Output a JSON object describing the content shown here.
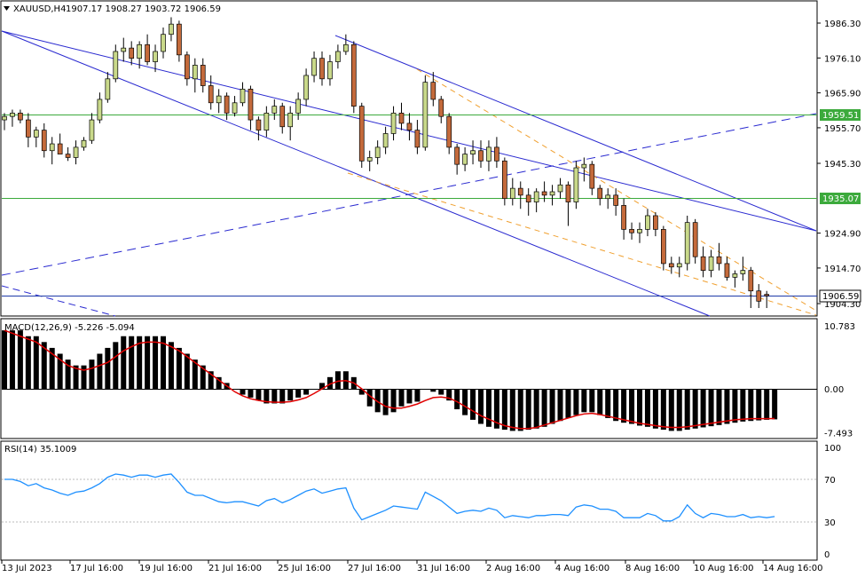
{
  "header": {
    "symbol_title": "XAUUSD,H4",
    "ohlc": "1907.17 1908.27 1903.72 1906.59"
  },
  "colors": {
    "bull": "#c9d98a",
    "bear": "#c46a3b",
    "channel": "#2a2ad0",
    "support": "#3caa3c",
    "fib": "#f0a030",
    "macd_signal": "#e00000",
    "rsi": "#1e90ff",
    "current_price": "#1e3aa8"
  },
  "price_axis": {
    "ticks": [
      "1986.30",
      "1976.10",
      "1965.90",
      "1955.70",
      "1945.30",
      "1924.90",
      "1914.70",
      "1904.30"
    ],
    "levels": [
      {
        "label": "1959.51",
        "kind": "support"
      },
      {
        "label": "1935.07",
        "kind": "support"
      },
      {
        "label": "1906.59",
        "kind": "current"
      }
    ]
  },
  "macd": {
    "title": "MACD(12,26,9) -5.226 -5.094",
    "ticks": [
      "10.783",
      "0.00",
      "-7.493"
    ]
  },
  "rsi": {
    "title": "RSI(14) 35.1009",
    "ticks": [
      "100",
      "70",
      "30",
      "0"
    ]
  },
  "time_axis": {
    "labels": [
      "13 Jul 2023",
      "17 Jul 16:00",
      "19 Jul 16:00",
      "21 Jul 16:00",
      "25 Jul 16:00",
      "27 Jul 16:00",
      "31 Jul 16:00",
      "2 Aug 16:00",
      "4 Aug 16:00",
      "8 Aug 16:00",
      "10 Aug 16:00",
      "14 Aug 16:00"
    ]
  },
  "chart_data": {
    "type": "candlestick",
    "ylim": [
      1900,
      1992
    ],
    "candles": [
      [
        1958,
        1960,
        1955,
        1959
      ],
      [
        1959,
        1961,
        1956,
        1960
      ],
      [
        1960,
        1961,
        1957,
        1958
      ],
      [
        1958,
        1960,
        1950,
        1953
      ],
      [
        1953,
        1956,
        1950,
        1955
      ],
      [
        1955,
        1957,
        1947,
        1949
      ],
      [
        1949,
        1953,
        1945,
        1951
      ],
      [
        1951,
        1954,
        1948,
        1948
      ],
      [
        1948,
        1950,
        1946,
        1947
      ],
      [
        1947,
        1952,
        1945,
        1950
      ],
      [
        1950,
        1953,
        1949,
        1952
      ],
      [
        1952,
        1960,
        1951,
        1958
      ],
      [
        1958,
        1966,
        1957,
        1964
      ],
      [
        1964,
        1972,
        1963,
        1970
      ],
      [
        1970,
        1980,
        1969,
        1978
      ],
      [
        1978,
        1982,
        1975,
        1979
      ],
      [
        1979,
        1981,
        1974,
        1976
      ],
      [
        1976,
        1981,
        1973,
        1980
      ],
      [
        1980,
        1983,
        1974,
        1975
      ],
      [
        1975,
        1980,
        1972,
        1978
      ],
      [
        1978,
        1985,
        1976,
        1983
      ],
      [
        1983,
        1988,
        1981,
        1986
      ],
      [
        1986,
        1987,
        1975,
        1977
      ],
      [
        1977,
        1978,
        1968,
        1970
      ],
      [
        1970,
        1976,
        1966,
        1974
      ],
      [
        1974,
        1976,
        1966,
        1968
      ],
      [
        1968,
        1971,
        1961,
        1963
      ],
      [
        1963,
        1967,
        1960,
        1965
      ],
      [
        1965,
        1966,
        1958,
        1960
      ],
      [
        1960,
        1965,
        1959,
        1963
      ],
      [
        1963,
        1969,
        1962,
        1967
      ],
      [
        1967,
        1968,
        1955,
        1958
      ],
      [
        1958,
        1959,
        1952,
        1955
      ],
      [
        1955,
        1962,
        1953,
        1960
      ],
      [
        1960,
        1964,
        1958,
        1962
      ],
      [
        1962,
        1963,
        1954,
        1956
      ],
      [
        1956,
        1962,
        1952,
        1960
      ],
      [
        1960,
        1966,
        1958,
        1964
      ],
      [
        1964,
        1973,
        1962,
        1971
      ],
      [
        1971,
        1978,
        1969,
        1976
      ],
      [
        1976,
        1978,
        1968,
        1970
      ],
      [
        1970,
        1977,
        1968,
        1975
      ],
      [
        1975,
        1980,
        1973,
        1978
      ],
      [
        1978,
        1983,
        1977,
        1980
      ],
      [
        1980,
        1981,
        1960,
        1962
      ],
      [
        1962,
        1963,
        1944,
        1946
      ],
      [
        1946,
        1949,
        1943,
        1947
      ],
      [
        1947,
        1952,
        1945,
        1950
      ],
      [
        1950,
        1956,
        1948,
        1954
      ],
      [
        1954,
        1962,
        1952,
        1960
      ],
      [
        1960,
        1963,
        1955,
        1957
      ],
      [
        1957,
        1960,
        1952,
        1955
      ],
      [
        1955,
        1958,
        1948,
        1950
      ],
      [
        1950,
        1971,
        1949,
        1969
      ],
      [
        1969,
        1972,
        1962,
        1964
      ],
      [
        1964,
        1965,
        1957,
        1959
      ],
      [
        1959,
        1960,
        1948,
        1950
      ],
      [
        1950,
        1951,
        1942,
        1945
      ],
      [
        1945,
        1950,
        1943,
        1948
      ],
      [
        1948,
        1952,
        1945,
        1949
      ],
      [
        1949,
        1952,
        1944,
        1946
      ],
      [
        1946,
        1952,
        1943,
        1950
      ],
      [
        1950,
        1953,
        1944,
        1946
      ],
      [
        1946,
        1947,
        1933,
        1935
      ],
      [
        1935,
        1941,
        1933,
        1938
      ],
      [
        1938,
        1940,
        1932,
        1936
      ],
      [
        1936,
        1938,
        1930,
        1934
      ],
      [
        1934,
        1938,
        1931,
        1937
      ],
      [
        1937,
        1940,
        1934,
        1936
      ],
      [
        1936,
        1939,
        1933,
        1937
      ],
      [
        1937,
        1941,
        1935,
        1939
      ],
      [
        1939,
        1940,
        1927,
        1934
      ],
      [
        1934,
        1946,
        1932,
        1944
      ],
      [
        1944,
        1947,
        1940,
        1945
      ],
      [
        1945,
        1946,
        1936,
        1938
      ],
      [
        1938,
        1939,
        1933,
        1935
      ],
      [
        1935,
        1938,
        1932,
        1936
      ],
      [
        1936,
        1938,
        1930,
        1933
      ],
      [
        1933,
        1935,
        1923,
        1926
      ],
      [
        1926,
        1928,
        1923,
        1925
      ],
      [
        1925,
        1928,
        1922,
        1926
      ],
      [
        1926,
        1932,
        1924,
        1930
      ],
      [
        1930,
        1931,
        1924,
        1926
      ],
      [
        1926,
        1927,
        1914,
        1916
      ],
      [
        1916,
        1918,
        1913,
        1915
      ],
      [
        1915,
        1918,
        1912,
        1916
      ],
      [
        1916,
        1930,
        1914,
        1928
      ],
      [
        1928,
        1929,
        1916,
        1918
      ],
      [
        1918,
        1921,
        1912,
        1914
      ],
      [
        1914,
        1920,
        1912,
        1918
      ],
      [
        1918,
        1922,
        1914,
        1916
      ],
      [
        1916,
        1918,
        1911,
        1912
      ],
      [
        1912,
        1914,
        1909,
        1913
      ],
      [
        1913,
        1918,
        1911,
        1914
      ],
      [
        1914,
        1915,
        1903,
        1908
      ],
      [
        1908,
        1910,
        1903,
        1905
      ],
      [
        1907,
        1908,
        1903,
        1906.6
      ]
    ],
    "macd_histogram": [
      10,
      10,
      10,
      9,
      9,
      8,
      7,
      6,
      5,
      4,
      4,
      5,
      6,
      7,
      8,
      9,
      9,
      9,
      9,
      9,
      9,
      8,
      7,
      6,
      5,
      4,
      3,
      2,
      1,
      0,
      -1,
      -1.5,
      -2,
      -2.5,
      -2.5,
      -2.5,
      -2,
      -1.5,
      -1,
      0,
      1,
      2,
      3,
      3,
      2,
      -1,
      -3,
      -4,
      -4.5,
      -4,
      -3,
      -2.5,
      -2.2,
      0,
      -0.5,
      -1,
      -2,
      -3.5,
      -4.5,
      -5.3,
      -6,
      -6.5,
      -6.8,
      -7,
      -7.2,
      -7.2,
      -7,
      -6.8,
      -6.5,
      -6,
      -5.5,
      -5,
      -4.5,
      -4,
      -4,
      -4.5,
      -5,
      -5.5,
      -5.8,
      -6,
      -6.3,
      -6.5,
      -6.8,
      -7,
      -7.2,
      -7.2,
      -7,
      -6.8,
      -6.6,
      -6.4,
      -6.2,
      -6,
      -5.8,
      -5.6,
      -5.5,
      -5.4,
      -5.3,
      -5.226
    ],
    "macd_signal": [
      10,
      9.5,
      9,
      8.5,
      8,
      7,
      6,
      5,
      4,
      3.5,
      3.2,
      3.5,
      4,
      4.5,
      5.5,
      6.5,
      7.2,
      7.8,
      8,
      8,
      7.8,
      7.2,
      6.5,
      5.5,
      4.5,
      3.5,
      2.5,
      1.5,
      0.5,
      -0.5,
      -1.2,
      -1.7,
      -2,
      -2.2,
      -2.3,
      -2.3,
      -2.2,
      -1.9,
      -1.5,
      -0.8,
      0,
      0.8,
      1.3,
      1.4,
      1,
      0,
      -1.2,
      -2.2,
      -3,
      -3.3,
      -3.3,
      -3,
      -2.6,
      -2,
      -1.5,
      -1.4,
      -1.6,
      -2.2,
      -3,
      -3.8,
      -4.6,
      -5.2,
      -5.8,
      -6.3,
      -6.6,
      -6.8,
      -6.8,
      -6.6,
      -6.2,
      -5.8,
      -5.4,
      -5,
      -4.6,
      -4.3,
      -4.2,
      -4.4,
      -4.7,
      -5,
      -5.3,
      -5.6,
      -5.9,
      -6.1,
      -6.3,
      -6.5,
      -6.6,
      -6.6,
      -6.5,
      -6.3,
      -6.1,
      -5.9,
      -5.7,
      -5.5,
      -5.3,
      -5.2,
      -5.1,
      -5.1,
      -5.1,
      -5.094
    ],
    "rsi": [
      70,
      70,
      68,
      64,
      66,
      62,
      60,
      57,
      55,
      58,
      59,
      62,
      66,
      72,
      75,
      74,
      72,
      74,
      74,
      72,
      74,
      75,
      67,
      58,
      55,
      55,
      52,
      49,
      48,
      49,
      49,
      47,
      45,
      50,
      52,
      48,
      51,
      55,
      59,
      61,
      57,
      59,
      61,
      62,
      43,
      32,
      35,
      38,
      41,
      45,
      44,
      43,
      42,
      58,
      54,
      50,
      44,
      38,
      40,
      41,
      40,
      43,
      41,
      34,
      36,
      35,
      34,
      36,
      36,
      37,
      37,
      36,
      44,
      46,
      45,
      42,
      42,
      40,
      34,
      34,
      34,
      38,
      36,
      31,
      31,
      35,
      46,
      38,
      34,
      38,
      37,
      35,
      35,
      37,
      34,
      35,
      34,
      35.1
    ]
  }
}
